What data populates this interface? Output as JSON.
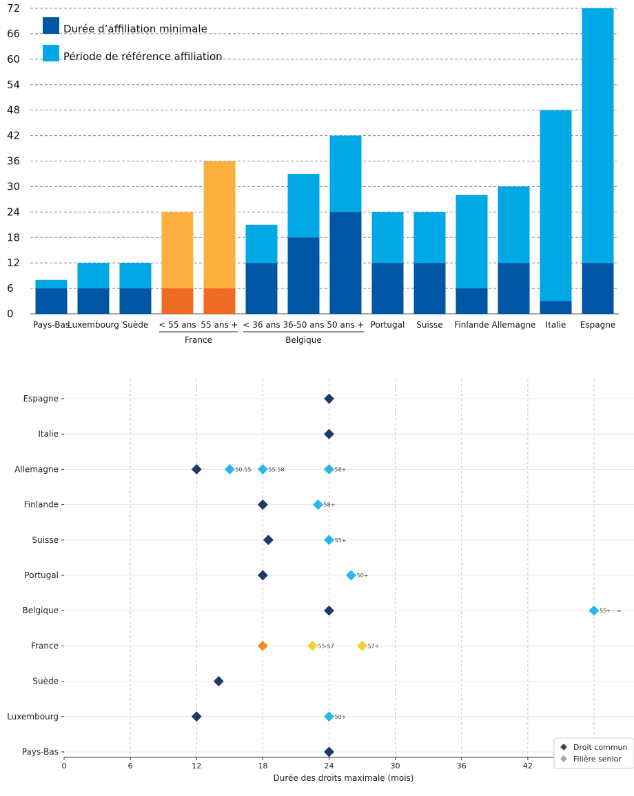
{
  "chart_data": [
    {
      "type": "bar",
      "stacked": true,
      "ylim": [
        0,
        72
      ],
      "yticks": [
        0,
        6,
        12,
        18,
        24,
        30,
        36,
        42,
        48,
        54,
        60,
        66,
        72
      ],
      "grid": true,
      "legend_position": "top-left",
      "series": [
        {
          "name": "Durée d’affiliation minimale",
          "color": "#0056a4"
        },
        {
          "name": "Période de référence affiliation",
          "color": "#00a8e6"
        }
      ],
      "france_colors": {
        "min": "#ef6b25",
        "ref": "#fbb040"
      },
      "categories": [
        {
          "label": "Pays-Bas",
          "min": 6,
          "total": 8
        },
        {
          "label": "Luxembourg",
          "min": 6,
          "total": 12
        },
        {
          "label": "Suède",
          "min": 6,
          "total": 12
        },
        {
          "label": "< 55 ans",
          "group": "France",
          "min": 6,
          "total": 24
        },
        {
          "label": "55 ans +",
          "group": "France",
          "min": 6,
          "total": 36
        },
        {
          "label": "< 36 ans",
          "group": "Belgique",
          "min": 12,
          "total": 21
        },
        {
          "label": "36-50 ans",
          "group": "Belgique",
          "min": 18,
          "total": 33
        },
        {
          "label": "50 ans +",
          "group": "Belgique",
          "min": 24,
          "total": 42
        },
        {
          "label": "Portugal",
          "min": 12,
          "total": 24
        },
        {
          "label": "Suisse",
          "min": 12,
          "total": 24
        },
        {
          "label": "Finlande",
          "min": 6,
          "total": 28
        },
        {
          "label": "Allemagne",
          "min": 12,
          "total": 30
        },
        {
          "label": "Italie",
          "min": 3,
          "total": 48
        },
        {
          "label": "Espagne",
          "min": 12,
          "total": 72
        }
      ],
      "groups": [
        {
          "name": "France",
          "from": 3,
          "to": 4
        },
        {
          "name": "Belgique",
          "from": 5,
          "to": 7
        }
      ]
    },
    {
      "type": "scatter",
      "xlabel": "Durée des droits maximale (mois)",
      "xlim": [
        0,
        52
      ],
      "xticks": [
        0,
        6,
        12,
        18,
        24,
        30,
        36,
        42,
        48
      ],
      "grid": true,
      "legend_position": "bottom-right",
      "legend": [
        {
          "name": "Droit commun",
          "color": "#444444"
        },
        {
          "name": "Filière senior",
          "color": "#aaaaaa"
        }
      ],
      "colors": {
        "common": "#1b3a66",
        "senior": "#29b6e8",
        "france_common": "#f28c28",
        "france_senior": "#f5d130"
      },
      "categories": [
        "Espagne",
        "Italie",
        "Allemagne",
        "Finlande",
        "Suisse",
        "Portugal",
        "Belgique",
        "France",
        "Suède",
        "Luxembourg",
        "Pays-Bas"
      ],
      "points": [
        {
          "country": "Espagne",
          "x": 24,
          "kind": "common",
          "label": ""
        },
        {
          "country": "Italie",
          "x": 24,
          "kind": "common",
          "label": ""
        },
        {
          "country": "Allemagne",
          "x": 12,
          "kind": "common",
          "label": ""
        },
        {
          "country": "Allemagne",
          "x": 15,
          "kind": "senior",
          "label": "50-55"
        },
        {
          "country": "Allemagne",
          "x": 18,
          "kind": "senior",
          "label": "55-58"
        },
        {
          "country": "Allemagne",
          "x": 24,
          "kind": "senior",
          "label": "58+"
        },
        {
          "country": "Finlande",
          "x": 18,
          "kind": "common",
          "label": ""
        },
        {
          "country": "Finlande",
          "x": 23,
          "kind": "senior",
          "label": "58+"
        },
        {
          "country": "Suisse",
          "x": 18.5,
          "kind": "common",
          "label": ""
        },
        {
          "country": "Suisse",
          "x": 24,
          "kind": "senior",
          "label": "55+"
        },
        {
          "country": "Portugal",
          "x": 18,
          "kind": "common",
          "label": ""
        },
        {
          "country": "Portugal",
          "x": 26,
          "kind": "senior",
          "label": "50+"
        },
        {
          "country": "Belgique",
          "x": 24,
          "kind": "common",
          "label": ""
        },
        {
          "country": "Belgique",
          "x": 48,
          "kind": "senior",
          "label": "55+ : ∞"
        },
        {
          "country": "France",
          "x": 18,
          "kind": "france_common",
          "label": ""
        },
        {
          "country": "France",
          "x": 22.5,
          "kind": "france_senior",
          "label": "55-57"
        },
        {
          "country": "France",
          "x": 27,
          "kind": "france_senior",
          "label": "57+"
        },
        {
          "country": "Suède",
          "x": 14,
          "kind": "common",
          "label": ""
        },
        {
          "country": "Luxembourg",
          "x": 12,
          "kind": "common",
          "label": ""
        },
        {
          "country": "Luxembourg",
          "x": 24,
          "kind": "senior",
          "label": "50+"
        },
        {
          "country": "Pays-Bas",
          "x": 24,
          "kind": "common",
          "label": ""
        }
      ]
    }
  ]
}
